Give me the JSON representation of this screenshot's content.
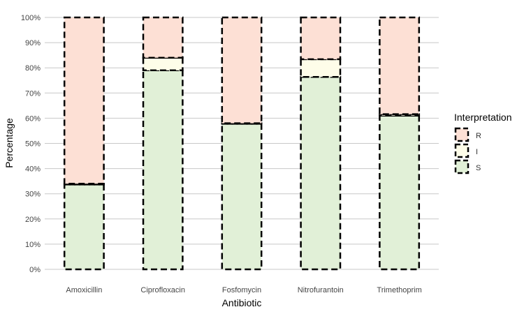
{
  "chart_data": {
    "type": "bar",
    "stacked": true,
    "categories": [
      "Amoxicillin",
      "Ciprofloxacin",
      "Fosfomycin",
      "Nitrofurantoin",
      "Trimethoprim"
    ],
    "series": [
      {
        "name": "S",
        "values": [
          33.7,
          79.0,
          57.8,
          76.4,
          61.0
        ],
        "color": "#e1f0d7"
      },
      {
        "name": "I",
        "values": [
          0.3,
          5.0,
          0.2,
          7.0,
          0.6
        ],
        "color": "#fefde9"
      },
      {
        "name": "R",
        "values": [
          66.0,
          16.0,
          42.0,
          16.6,
          38.4
        ],
        "color": "#fde0d5"
      }
    ],
    "xlabel": "Antibiotic",
    "ylabel": "Percentage",
    "ylim": [
      0,
      100
    ],
    "yticks": [
      "0%",
      "10%",
      "20%",
      "30%",
      "40%",
      "50%",
      "60%",
      "70%",
      "80%",
      "90%",
      "100%"
    ],
    "grid": true,
    "legend": {
      "title": "Interpretation",
      "position": "right",
      "entries": [
        "R",
        "I",
        "S"
      ]
    },
    "bar_border": "dashed black"
  }
}
